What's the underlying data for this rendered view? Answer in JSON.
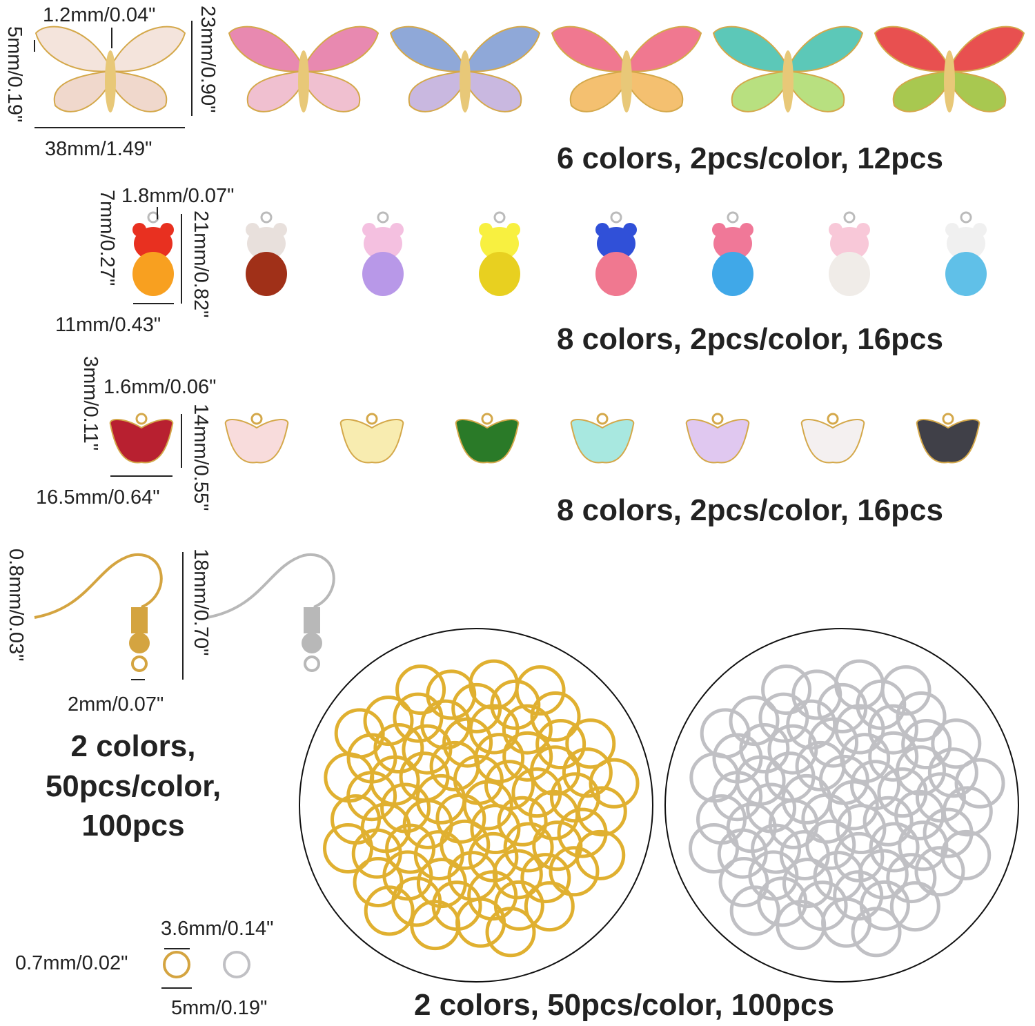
{
  "sections": [
    {
      "dimensions": [
        "1.2mm/0.04\"",
        "5mm/0.19\"",
        "23mm/0.90\"",
        "38mm/1.49\""
      ],
      "caption": "6 colors, 2pcs/color, 12pcs"
    },
    {
      "dimensions": [
        "1.8mm/0.07\"",
        "7mm/0.27\"",
        "21mm/0.82\"",
        "11mm/0.43\""
      ],
      "caption": "8 colors, 2pcs/color, 16pcs"
    },
    {
      "dimensions": [
        "1.6mm/0.06\"",
        "3mm/0.11\"",
        "14mm/0.55\"",
        "16.5mm/0.64\""
      ],
      "caption": "8 colors, 2pcs/color, 16pcs"
    },
    {
      "dimensions": [
        "0.8mm/0.03\"",
        "18mm/0.70\"",
        "2mm/0.07\""
      ],
      "caption_lines": [
        "2 colors,",
        "50pcs/color,",
        "100pcs"
      ]
    },
    {
      "dimensions": [
        "3.6mm/0.14\"",
        "0.7mm/0.02\"",
        "5mm/0.19\""
      ],
      "caption": "2 colors, 50pcs/color, 100pcs"
    }
  ]
}
